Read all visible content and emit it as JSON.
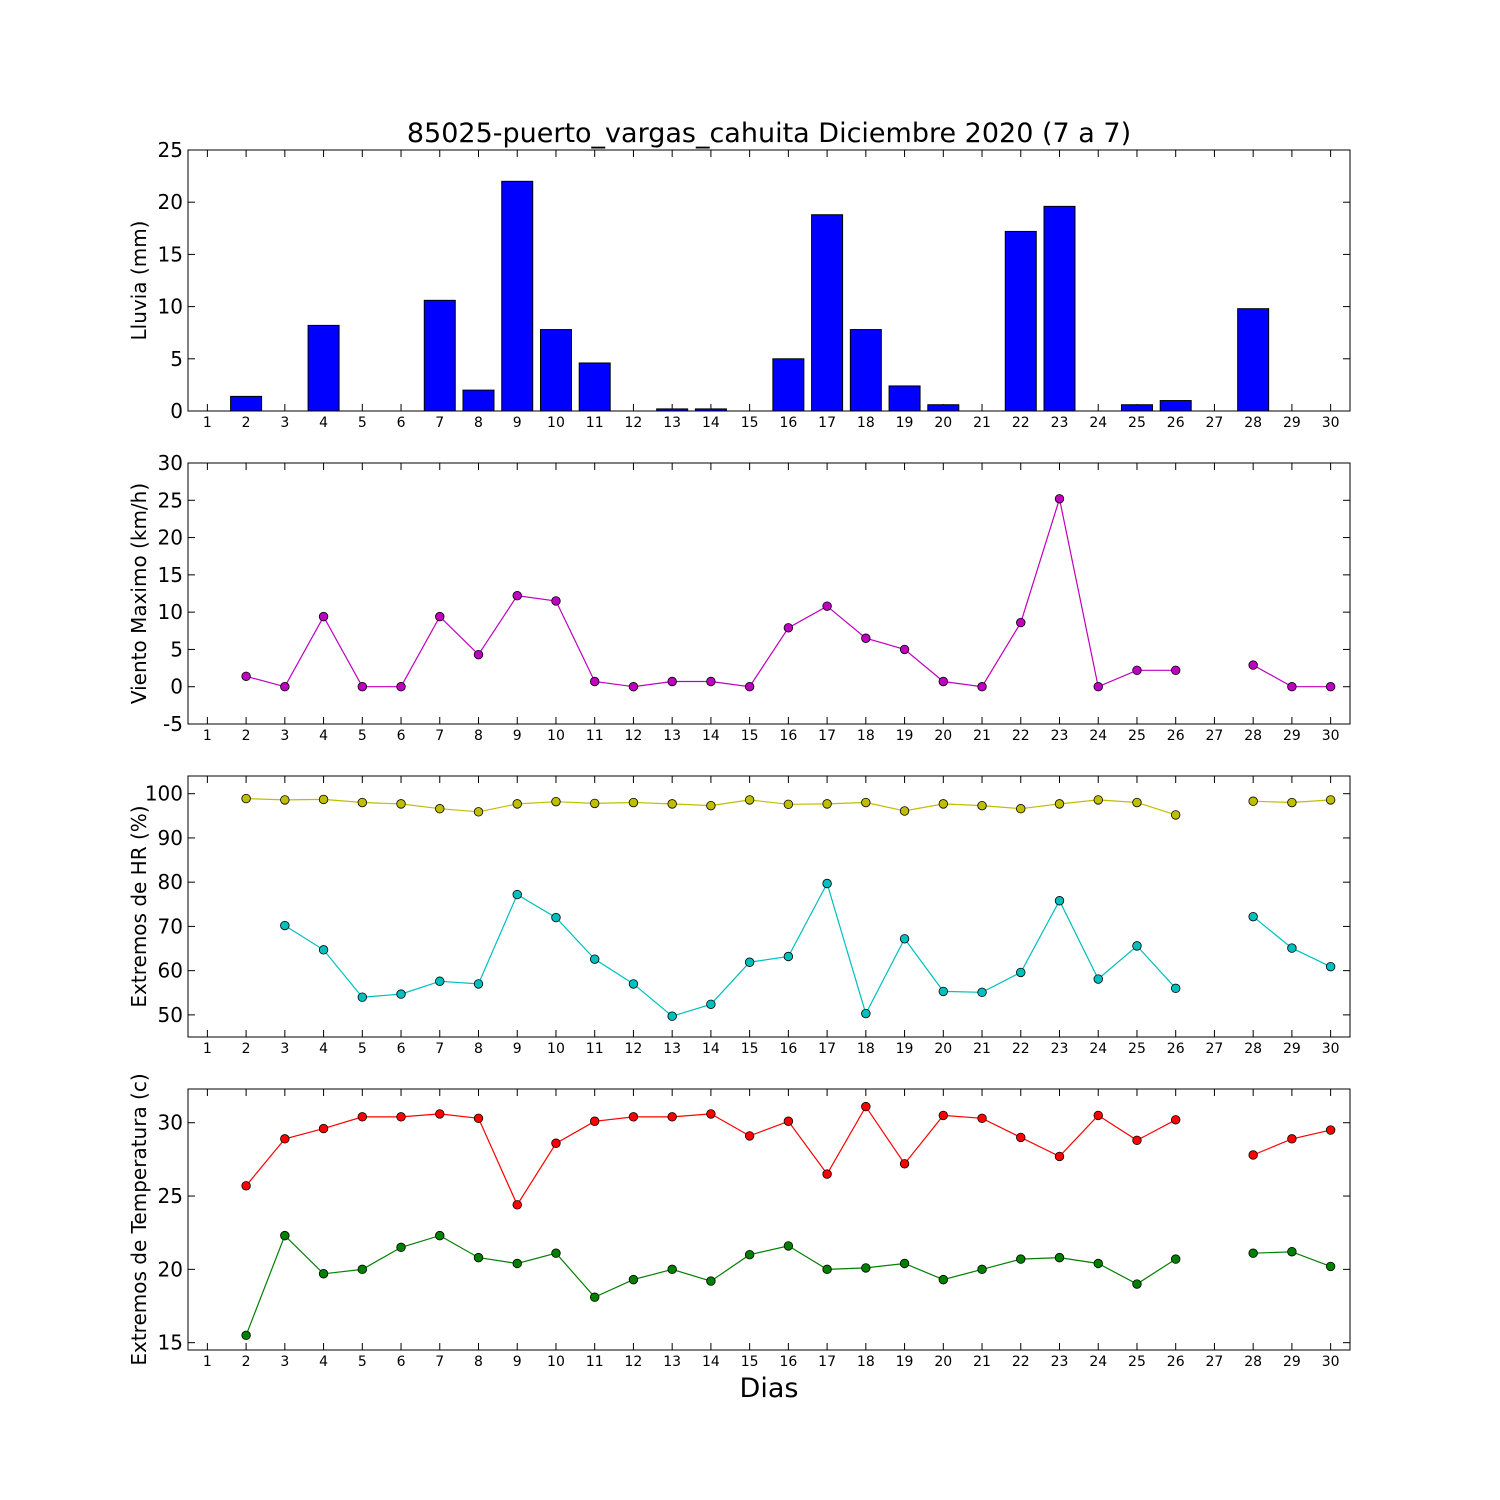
{
  "title": "85025-puerto_vargas_cahuita Diciembre 2020  (7 a 7)",
  "x_axis_label": "Dias",
  "colors": {
    "rain": "#0000ff",
    "wind": "#bf00bf",
    "hr_max": "#bfbf00",
    "hr_min": "#00bfbf",
    "temp_max": "#ff0000",
    "temp_min": "#008000",
    "axis": "#000000"
  },
  "chart_data": [
    {
      "type": "bar",
      "ylabel": "Lluvia (mm)",
      "xlim": [
        0.5,
        30.5
      ],
      "ylim": [
        0,
        25
      ],
      "yticks": [
        0,
        5,
        10,
        15,
        20,
        25
      ],
      "xticks": [
        1,
        2,
        3,
        4,
        5,
        6,
        7,
        8,
        9,
        10,
        11,
        12,
        13,
        14,
        15,
        16,
        17,
        18,
        19,
        20,
        21,
        22,
        23,
        24,
        25,
        26,
        27,
        28,
        29,
        30
      ],
      "series": [
        {
          "x": [
            1,
            2,
            3,
            4,
            5,
            6,
            7,
            8,
            9,
            10,
            11,
            12,
            13,
            14,
            15,
            16,
            17,
            18,
            19,
            20,
            21,
            22,
            23,
            24,
            25,
            26,
            27,
            28,
            29,
            30
          ],
          "values": [
            0,
            1.4,
            0,
            8.2,
            0,
            0,
            10.6,
            2.0,
            22.0,
            7.8,
            4.6,
            0,
            0.2,
            0.2,
            0,
            5.0,
            18.8,
            7.8,
            2.4,
            0.6,
            0,
            17.2,
            19.6,
            0,
            0.6,
            1.0,
            0,
            9.8,
            0,
            0
          ]
        }
      ]
    },
    {
      "type": "line",
      "ylabel": "Viento Maximo (km/h)",
      "xlim": [
        0.5,
        30.5
      ],
      "ylim": [
        -5,
        30
      ],
      "yticks": [
        -5,
        0,
        5,
        10,
        15,
        20,
        25,
        30
      ],
      "xticks": [
        1,
        2,
        3,
        4,
        5,
        6,
        7,
        8,
        9,
        10,
        11,
        12,
        13,
        14,
        15,
        16,
        17,
        18,
        19,
        20,
        21,
        22,
        23,
        24,
        25,
        26,
        27,
        28,
        29,
        30
      ],
      "series": [
        {
          "x": [
            2,
            3,
            4,
            5,
            6,
            7,
            8,
            9,
            10,
            11,
            12,
            13,
            14,
            15,
            16,
            17,
            18,
            19,
            20,
            21,
            22,
            23,
            24,
            25,
            26,
            27,
            28,
            29,
            30
          ],
          "values": [
            1.4,
            0,
            9.4,
            0,
            0,
            9.4,
            4.3,
            12.2,
            11.5,
            0.7,
            0,
            0.7,
            0.7,
            0,
            7.9,
            10.8,
            6.5,
            5.0,
            0.7,
            0,
            8.6,
            25.2,
            0,
            2.2,
            2.2,
            null,
            2.9,
            0,
            0
          ]
        }
      ]
    },
    {
      "type": "line",
      "ylabel": "Extremos de HR (%)",
      "xlim": [
        0.5,
        30.5
      ],
      "ylim": [
        45,
        104
      ],
      "yticks": [
        50,
        60,
        70,
        80,
        90,
        100
      ],
      "xticks": [
        1,
        2,
        3,
        4,
        5,
        6,
        7,
        8,
        9,
        10,
        11,
        12,
        13,
        14,
        15,
        16,
        17,
        18,
        19,
        20,
        21,
        22,
        23,
        24,
        25,
        26,
        27,
        28,
        29,
        30
      ],
      "series": [
        {
          "x": [
            2,
            3,
            4,
            5,
            6,
            7,
            8,
            9,
            10,
            11,
            12,
            13,
            14,
            15,
            16,
            17,
            18,
            19,
            20,
            21,
            22,
            23,
            24,
            25,
            26,
            27,
            28,
            29,
            30
          ],
          "values": [
            98.9,
            98.6,
            98.7,
            98.0,
            97.7,
            96.6,
            95.9,
            97.7,
            98.2,
            97.8,
            98.0,
            97.7,
            97.3,
            98.6,
            97.6,
            97.7,
            98.0,
            96.1,
            97.7,
            97.3,
            96.6,
            97.7,
            98.6,
            98.0,
            95.2,
            null,
            98.3,
            98.0,
            98.6
          ]
        },
        {
          "x": [
            3,
            4,
            5,
            6,
            7,
            8,
            9,
            10,
            11,
            12,
            13,
            14,
            15,
            16,
            17,
            18,
            19,
            20,
            21,
            22,
            23,
            24,
            25,
            26,
            27,
            28,
            29,
            30
          ],
          "values": [
            70.2,
            64.7,
            54.0,
            54.7,
            57.6,
            57.0,
            77.2,
            72.0,
            62.6,
            57.0,
            49.7,
            52.4,
            61.9,
            63.2,
            79.7,
            50.3,
            67.2,
            55.3,
            55.1,
            59.6,
            75.8,
            58.1,
            65.6,
            56.0,
            null,
            72.2,
            65.1,
            60.9
          ]
        }
      ]
    },
    {
      "type": "line",
      "ylabel": "Extremos de Temperatura (c)",
      "xlim": [
        0.5,
        30.5
      ],
      "ylim": [
        14.5,
        32.3
      ],
      "yticks": [
        15,
        20,
        25,
        30
      ],
      "xticks": [
        1,
        2,
        3,
        4,
        5,
        6,
        7,
        8,
        9,
        10,
        11,
        12,
        13,
        14,
        15,
        16,
        17,
        18,
        19,
        20,
        21,
        22,
        23,
        24,
        25,
        26,
        27,
        28,
        29,
        30
      ],
      "series": [
        {
          "x": [
            2,
            3,
            4,
            5,
            6,
            7,
            8,
            9,
            10,
            11,
            12,
            13,
            14,
            15,
            16,
            17,
            18,
            19,
            20,
            21,
            22,
            23,
            24,
            25,
            26,
            27,
            28,
            29,
            30
          ],
          "values": [
            25.7,
            28.9,
            29.6,
            30.4,
            30.4,
            30.6,
            30.3,
            24.4,
            28.6,
            30.1,
            30.4,
            30.4,
            30.6,
            29.1,
            30.1,
            26.5,
            31.1,
            27.2,
            30.5,
            30.3,
            29.0,
            27.7,
            30.5,
            28.8,
            30.2,
            null,
            27.8,
            28.9,
            29.5
          ]
        },
        {
          "x": [
            2,
            3,
            4,
            5,
            6,
            7,
            8,
            9,
            10,
            11,
            12,
            13,
            14,
            15,
            16,
            17,
            18,
            19,
            20,
            21,
            22,
            23,
            24,
            25,
            26,
            27,
            28,
            29,
            30
          ],
          "values": [
            15.5,
            22.3,
            19.7,
            20.0,
            21.5,
            22.3,
            20.8,
            20.4,
            21.1,
            18.1,
            19.3,
            20.0,
            19.2,
            21.0,
            21.6,
            20.0,
            20.1,
            20.4,
            19.3,
            20.0,
            20.7,
            20.8,
            20.4,
            19.0,
            20.7,
            null,
            21.1,
            21.2,
            20.2
          ]
        }
      ]
    }
  ]
}
